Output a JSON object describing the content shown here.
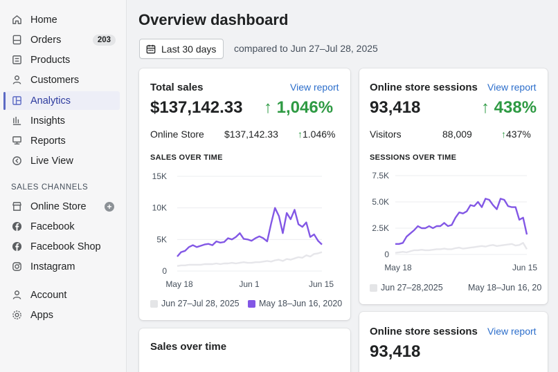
{
  "sidebar": {
    "items": [
      {
        "label": "Home",
        "icon": "home-icon"
      },
      {
        "label": "Orders",
        "icon": "orders-icon",
        "badge": "203"
      },
      {
        "label": "Products",
        "icon": "products-icon"
      },
      {
        "label": "Customers",
        "icon": "customers-icon"
      },
      {
        "label": "Analytics",
        "icon": "analytics-icon",
        "active": true
      },
      {
        "label": "Insights",
        "icon": "insights-icon"
      },
      {
        "label": "Reports",
        "icon": "reports-icon"
      },
      {
        "label": "Live View",
        "icon": "live-view-icon"
      }
    ],
    "channels_title": "SALES CHANNELS",
    "channels": [
      {
        "label": "Online Store",
        "icon": "store-icon"
      },
      {
        "label": "Facebook",
        "icon": "facebook-icon"
      },
      {
        "label": "Facebook Shop",
        "icon": "facebook-icon"
      },
      {
        "label": "Instagram",
        "icon": "instagram-icon"
      }
    ],
    "bottom": [
      {
        "label": "Account",
        "icon": "account-icon"
      },
      {
        "label": "Apps",
        "icon": "apps-icon"
      }
    ],
    "add_symbol": "+"
  },
  "header": {
    "title": "Overview dashboard",
    "date_button": "Last 30 days",
    "compare_text": "compared to Jun 27–Jul 28, 2025"
  },
  "colors": {
    "accent": "#5c6ac4",
    "link": "#2c6ecb",
    "positive": "#2e9a43",
    "series_current": "#8257e5",
    "series_previous": "#e4e5e7"
  },
  "total_sales": {
    "title": "Total sales",
    "link": "View report",
    "value": "$137,142.33",
    "delta": "↑ 1,046%",
    "row": {
      "label": "Online Store",
      "value": "$137,142.33",
      "delta_arrow": "↑",
      "delta": "1.046%"
    },
    "chart_title": "SALES OVER TIME",
    "legend": [
      "Jun 27–Jul 28, 2025",
      "May 18–Jun 16, 2020"
    ]
  },
  "sessions": {
    "title": "Online store sessions",
    "link": "View report",
    "value": "93,418",
    "delta": "↑ 438%",
    "row": {
      "label": "Visitors",
      "value": "88,009",
      "delta_arrow": "↑",
      "delta": "437%"
    },
    "chart_title": "SESSIONS OVER TIME",
    "legend": [
      "Jun 27–28,2025",
      "May 18–Jun 16, 20"
    ]
  },
  "sessions2": {
    "title": "Online store sessions",
    "link": "View report",
    "value": "93,418"
  },
  "sales_over_time": {
    "title": "Sales over time"
  },
  "chart_data": [
    {
      "type": "line",
      "title": "SALES OVER TIME",
      "yticks": [
        "15K",
        "10K",
        "5K",
        "0"
      ],
      "xticks": [
        "May 18",
        "Jun 1",
        "Jun 15"
      ],
      "ylim": [
        0,
        15000
      ],
      "series": [
        {
          "name": "May 18–Jun 16, 2020",
          "values": [
            2300,
            3000,
            3200,
            3800,
            4100,
            3800,
            4000,
            4200,
            4300,
            4100,
            4700,
            4500,
            4600,
            5200,
            5000,
            5400,
            6000,
            5100,
            5000,
            4800,
            5200,
            5500,
            5200,
            4700,
            7500,
            10000,
            8700,
            6000,
            9200,
            8200,
            9700,
            7400,
            7000,
            7700,
            5400,
            5800,
            4800,
            4200
          ]
        },
        {
          "name": "Jun 27–Jul 28, 2025",
          "values": [
            800,
            900,
            900,
            1000,
            1000,
            1000,
            1000,
            1100,
            1100,
            1100,
            1200,
            1100,
            1200,
            1200,
            1300,
            1200,
            1300,
            1400,
            1300,
            1300,
            1400,
            1400,
            1500,
            1600,
            1500,
            1700,
            1800,
            1600,
            1900,
            1800,
            2000,
            2200,
            2100,
            2500,
            2300,
            2700,
            2800,
            3000
          ]
        }
      ]
    },
    {
      "type": "line",
      "title": "SESSIONS OVER TIME",
      "yticks": [
        "7.5K",
        "5.0K",
        "2.5K",
        "0"
      ],
      "xticks": [
        "May 18",
        "Jun 15"
      ],
      "ylim": [
        0,
        7500
      ],
      "series": [
        {
          "name": "May 18–Jun 16, 20",
          "values": [
            1000,
            1000,
            1100,
            1700,
            2000,
            2300,
            2700,
            2500,
            2500,
            2700,
            2500,
            2700,
            2700,
            3000,
            2700,
            2800,
            3500,
            4000,
            3900,
            4100,
            4700,
            4600,
            5000,
            4500,
            5300,
            5200,
            4700,
            4300,
            5300,
            5200,
            4600,
            4500,
            4500,
            3300,
            3500,
            1900
          ]
        },
        {
          "name": "Jun 27–28,2025",
          "values": [
            150,
            200,
            250,
            200,
            300,
            400,
            400,
            450,
            400,
            400,
            450,
            500,
            500,
            550,
            500,
            500,
            600,
            650,
            550,
            600,
            650,
            700,
            750,
            800,
            750,
            850,
            900,
            800,
            850,
            900,
            950,
            1000,
            850,
            900,
            1100,
            500
          ]
        }
      ]
    }
  ]
}
